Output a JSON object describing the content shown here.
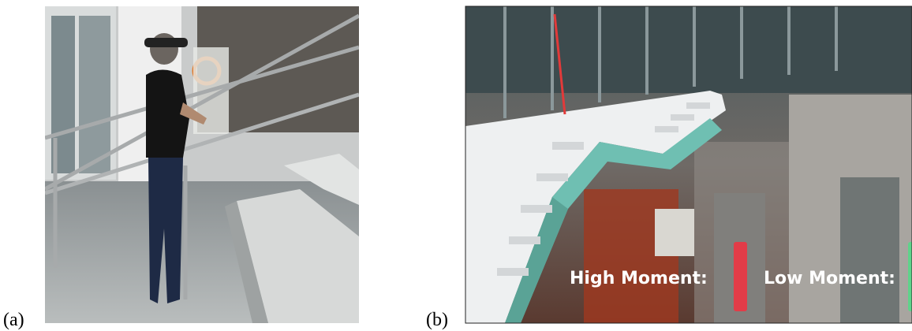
{
  "panels": [
    {
      "label": "(a)"
    },
    {
      "label": "(b)",
      "overlay": {
        "high": "High Moment:",
        "low": "Low Moment:"
      }
    }
  ]
}
